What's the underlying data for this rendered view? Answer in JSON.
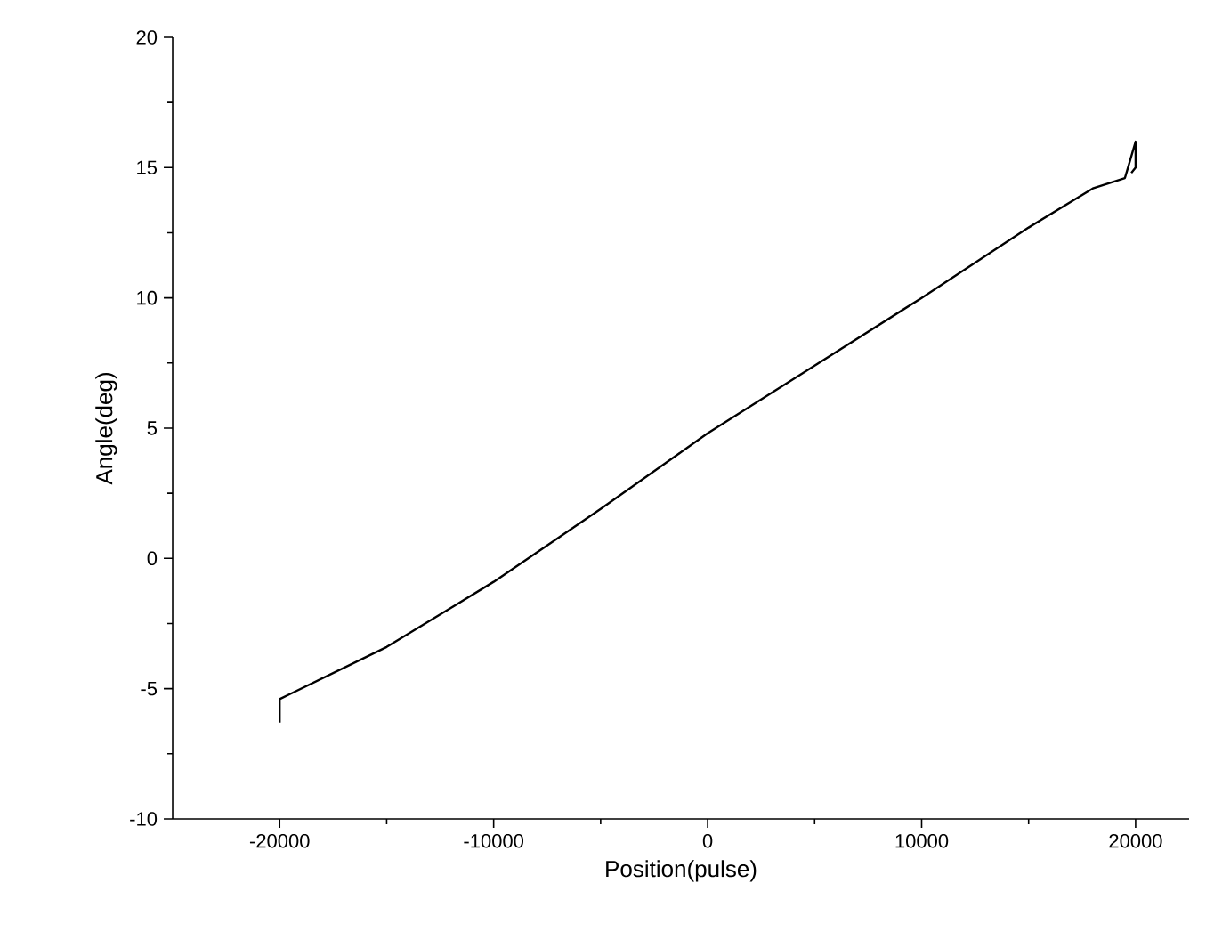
{
  "chart_data": {
    "type": "line",
    "xlabel": "Position(pulse)",
    "ylabel": "Angle(deg)",
    "x": [
      -20000,
      -20000,
      -19500,
      -15000,
      -10000,
      -5000,
      0,
      5000,
      10000,
      15000,
      18000,
      19500,
      20000,
      20000,
      19800
    ],
    "values": [
      -6.3,
      -5.4,
      -5.2,
      -3.4,
      -0.9,
      1.9,
      4.8,
      7.4,
      10.0,
      12.7,
      14.2,
      14.6,
      16.0,
      15.0,
      14.8
    ],
    "color": "#000000",
    "xlim": [
      -25000,
      22500
    ],
    "ylim": [
      -10,
      20
    ],
    "xticks": [
      -20000,
      -10000,
      0,
      10000,
      20000
    ],
    "yticks": [
      -10,
      -5,
      0,
      5,
      10,
      15,
      20
    ]
  }
}
